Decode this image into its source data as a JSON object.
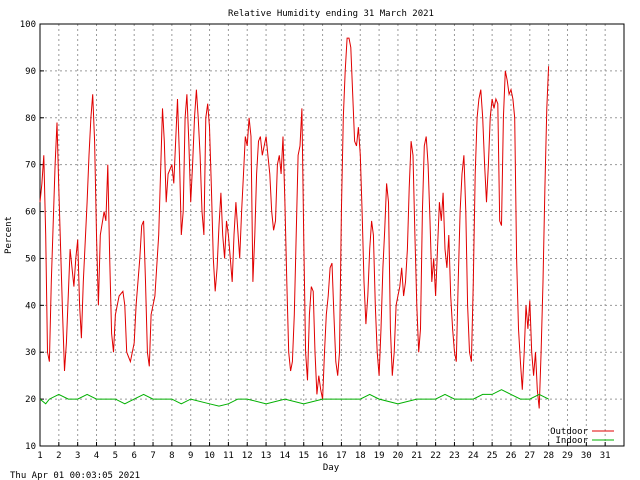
{
  "chart_data": {
    "type": "line",
    "title": "Relative Humidity ending 31 March 2021",
    "xlabel": "Day",
    "ylabel": "Percent",
    "ylim": [
      10,
      100
    ],
    "xlim": [
      1,
      32
    ],
    "x_ticks": [
      "1",
      "2",
      "3",
      "4",
      "5",
      "6",
      "7",
      "8",
      "9",
      "10",
      "11",
      "12",
      "13",
      "14",
      "15",
      "16",
      "17",
      "18",
      "19",
      "20",
      "21",
      "22",
      "23",
      "24",
      "25",
      "26",
      "27",
      "28",
      "29",
      "30",
      "31"
    ],
    "y_ticks": [
      "10",
      "20",
      "30",
      "40",
      "50",
      "60",
      "70",
      "80",
      "90",
      "100"
    ],
    "grid": true,
    "legend_position": "bottom-right",
    "footer": "Thu Apr 01 00:03:05 2021",
    "colors": {
      "outdoor": "#e00000",
      "indoor": "#00b000"
    },
    "series": [
      {
        "name": "Outdoor",
        "color": "#e00000",
        "points": [
          [
            1.0,
            62
          ],
          [
            1.1,
            66
          ],
          [
            1.2,
            72
          ],
          [
            1.3,
            55
          ],
          [
            1.4,
            30
          ],
          [
            1.5,
            28
          ],
          [
            1.6,
            45
          ],
          [
            1.8,
            70
          ],
          [
            1.9,
            79
          ],
          [
            2.0,
            65
          ],
          [
            2.2,
            38
          ],
          [
            2.3,
            26
          ],
          [
            2.4,
            32
          ],
          [
            2.6,
            52
          ],
          [
            2.7,
            48
          ],
          [
            2.8,
            44
          ],
          [
            2.9,
            50
          ],
          [
            3.0,
            54
          ],
          [
            3.1,
            40
          ],
          [
            3.2,
            33
          ],
          [
            3.3,
            45
          ],
          [
            3.5,
            62
          ],
          [
            3.6,
            72
          ],
          [
            3.7,
            80
          ],
          [
            3.8,
            85
          ],
          [
            3.9,
            75
          ],
          [
            4.0,
            55
          ],
          [
            4.1,
            40
          ],
          [
            4.2,
            55
          ],
          [
            4.4,
            60
          ],
          [
            4.5,
            58
          ],
          [
            4.6,
            70
          ],
          [
            4.7,
            50
          ],
          [
            4.8,
            34
          ],
          [
            4.9,
            30
          ],
          [
            5.0,
            38
          ],
          [
            5.2,
            42
          ],
          [
            5.4,
            43
          ],
          [
            5.5,
            40
          ],
          [
            5.6,
            30
          ],
          [
            5.8,
            28
          ],
          [
            6.0,
            32
          ],
          [
            6.1,
            40
          ],
          [
            6.3,
            50
          ],
          [
            6.4,
            57
          ],
          [
            6.5,
            58
          ],
          [
            6.6,
            45
          ],
          [
            6.7,
            30
          ],
          [
            6.8,
            27
          ],
          [
            6.9,
            38
          ],
          [
            7.1,
            42
          ],
          [
            7.3,
            55
          ],
          [
            7.5,
            82
          ],
          [
            7.6,
            75
          ],
          [
            7.7,
            62
          ],
          [
            7.8,
            68
          ],
          [
            8.0,
            70
          ],
          [
            8.1,
            66
          ],
          [
            8.3,
            84
          ],
          [
            8.4,
            72
          ],
          [
            8.5,
            55
          ],
          [
            8.6,
            60
          ],
          [
            8.7,
            80
          ],
          [
            8.8,
            85
          ],
          [
            8.9,
            75
          ],
          [
            9.0,
            62
          ],
          [
            9.1,
            70
          ],
          [
            9.2,
            80
          ],
          [
            9.3,
            86
          ],
          [
            9.4,
            80
          ],
          [
            9.5,
            72
          ],
          [
            9.6,
            60
          ],
          [
            9.7,
            55
          ],
          [
            9.8,
            80
          ],
          [
            9.9,
            83
          ],
          [
            10.0,
            78
          ],
          [
            10.1,
            65
          ],
          [
            10.2,
            50
          ],
          [
            10.3,
            43
          ],
          [
            10.4,
            48
          ],
          [
            10.5,
            57
          ],
          [
            10.6,
            64
          ],
          [
            10.7,
            55
          ],
          [
            10.8,
            50
          ],
          [
            10.9,
            58
          ],
          [
            11.0,
            55
          ],
          [
            11.2,
            45
          ],
          [
            11.3,
            55
          ],
          [
            11.4,
            62
          ],
          [
            11.5,
            56
          ],
          [
            11.6,
            50
          ],
          [
            11.7,
            60
          ],
          [
            11.8,
            68
          ],
          [
            11.9,
            76
          ],
          [
            12.0,
            74
          ],
          [
            12.1,
            80
          ],
          [
            12.2,
            76
          ],
          [
            12.3,
            45
          ],
          [
            12.4,
            55
          ],
          [
            12.5,
            68
          ],
          [
            12.6,
            75
          ],
          [
            12.7,
            76
          ],
          [
            12.8,
            72
          ],
          [
            12.9,
            74
          ],
          [
            13.0,
            76
          ],
          [
            13.1,
            72
          ],
          [
            13.2,
            68
          ],
          [
            13.3,
            60
          ],
          [
            13.4,
            56
          ],
          [
            13.5,
            58
          ],
          [
            13.6,
            70
          ],
          [
            13.7,
            72
          ],
          [
            13.8,
            68
          ],
          [
            13.9,
            76
          ],
          [
            14.0,
            62
          ],
          [
            14.1,
            45
          ],
          [
            14.2,
            30
          ],
          [
            14.3,
            26
          ],
          [
            14.4,
            28
          ],
          [
            14.5,
            38
          ],
          [
            14.6,
            55
          ],
          [
            14.7,
            72
          ],
          [
            14.8,
            74
          ],
          [
            14.9,
            82
          ],
          [
            15.0,
            55
          ],
          [
            15.1,
            30
          ],
          [
            15.2,
            24
          ],
          [
            15.3,
            38
          ],
          [
            15.4,
            44
          ],
          [
            15.5,
            43
          ],
          [
            15.6,
            30
          ],
          [
            15.7,
            21
          ],
          [
            15.8,
            25
          ],
          [
            15.9,
            22
          ],
          [
            16.0,
            20
          ],
          [
            16.1,
            30
          ],
          [
            16.2,
            38
          ],
          [
            16.3,
            42
          ],
          [
            16.4,
            48
          ],
          [
            16.5,
            49
          ],
          [
            16.6,
            38
          ],
          [
            16.7,
            28
          ],
          [
            16.8,
            25
          ],
          [
            16.9,
            30
          ],
          [
            17.0,
            60
          ],
          [
            17.1,
            80
          ],
          [
            17.2,
            90
          ],
          [
            17.3,
            97
          ],
          [
            17.4,
            97
          ],
          [
            17.5,
            95
          ],
          [
            17.6,
            85
          ],
          [
            17.7,
            75
          ],
          [
            17.8,
            74
          ],
          [
            17.9,
            78
          ],
          [
            18.0,
            72
          ],
          [
            18.1,
            60
          ],
          [
            18.2,
            45
          ],
          [
            18.3,
            36
          ],
          [
            18.4,
            42
          ],
          [
            18.5,
            52
          ],
          [
            18.6,
            58
          ],
          [
            18.7,
            55
          ],
          [
            18.8,
            40
          ],
          [
            18.9,
            30
          ],
          [
            19.0,
            25
          ],
          [
            19.1,
            35
          ],
          [
            19.2,
            48
          ],
          [
            19.3,
            56
          ],
          [
            19.4,
            66
          ],
          [
            19.5,
            62
          ],
          [
            19.6,
            35
          ],
          [
            19.7,
            25
          ],
          [
            19.8,
            30
          ],
          [
            19.9,
            40
          ],
          [
            20.0,
            42
          ],
          [
            20.1,
            44
          ],
          [
            20.2,
            48
          ],
          [
            20.3,
            42
          ],
          [
            20.4,
            45
          ],
          [
            20.5,
            52
          ],
          [
            20.6,
            65
          ],
          [
            20.7,
            75
          ],
          [
            20.8,
            72
          ],
          [
            20.9,
            55
          ],
          [
            21.0,
            40
          ],
          [
            21.1,
            30
          ],
          [
            21.2,
            35
          ],
          [
            21.3,
            60
          ],
          [
            21.4,
            74
          ],
          [
            21.5,
            76
          ],
          [
            21.6,
            70
          ],
          [
            21.7,
            58
          ],
          [
            21.8,
            45
          ],
          [
            21.9,
            50
          ],
          [
            22.0,
            42
          ],
          [
            22.1,
            52
          ],
          [
            22.2,
            62
          ],
          [
            22.3,
            58
          ],
          [
            22.4,
            64
          ],
          [
            22.5,
            52
          ],
          [
            22.6,
            48
          ],
          [
            22.7,
            55
          ],
          [
            22.8,
            42
          ],
          [
            22.9,
            35
          ],
          [
            23.0,
            30
          ],
          [
            23.1,
            28
          ],
          [
            23.2,
            45
          ],
          [
            23.3,
            60
          ],
          [
            23.4,
            68
          ],
          [
            23.5,
            72
          ],
          [
            23.6,
            60
          ],
          [
            23.7,
            40
          ],
          [
            23.8,
            30
          ],
          [
            23.9,
            28
          ],
          [
            24.0,
            45
          ],
          [
            24.1,
            68
          ],
          [
            24.2,
            80
          ],
          [
            24.3,
            84
          ],
          [
            24.4,
            86
          ],
          [
            24.5,
            80
          ],
          [
            24.6,
            70
          ],
          [
            24.7,
            62
          ],
          [
            24.8,
            70
          ],
          [
            24.9,
            80
          ],
          [
            25.0,
            84
          ],
          [
            25.1,
            82
          ],
          [
            25.2,
            84
          ],
          [
            25.3,
            83
          ],
          [
            25.4,
            58
          ],
          [
            25.5,
            57
          ],
          [
            25.6,
            80
          ],
          [
            25.7,
            90
          ],
          [
            25.8,
            88
          ],
          [
            25.9,
            85
          ],
          [
            26.0,
            86
          ],
          [
            26.1,
            84
          ],
          [
            26.2,
            80
          ],
          [
            26.3,
            50
          ],
          [
            26.4,
            35
          ],
          [
            26.5,
            28
          ],
          [
            26.6,
            22
          ],
          [
            26.7,
            30
          ],
          [
            26.8,
            40
          ],
          [
            26.9,
            35
          ],
          [
            27.0,
            41
          ],
          [
            27.1,
            30
          ],
          [
            27.2,
            25
          ],
          [
            27.3,
            30
          ],
          [
            27.4,
            22
          ],
          [
            27.5,
            18
          ],
          [
            27.6,
            30
          ],
          [
            27.7,
            45
          ],
          [
            27.8,
            65
          ],
          [
            27.9,
            82
          ],
          [
            28.0,
            91
          ]
        ]
      },
      {
        "name": "Indoor",
        "color": "#00b000",
        "points": [
          [
            1.0,
            20
          ],
          [
            1.3,
            19
          ],
          [
            1.5,
            20
          ],
          [
            2.0,
            21
          ],
          [
            2.5,
            20
          ],
          [
            3.0,
            20
          ],
          [
            3.5,
            21
          ],
          [
            4.0,
            20
          ],
          [
            5.0,
            20
          ],
          [
            5.5,
            19
          ],
          [
            6.0,
            20
          ],
          [
            6.5,
            21
          ],
          [
            7.0,
            20
          ],
          [
            8.0,
            20
          ],
          [
            8.5,
            19
          ],
          [
            9.0,
            20
          ],
          [
            10.0,
            19
          ],
          [
            10.5,
            18.5
          ],
          [
            11.0,
            19
          ],
          [
            11.5,
            20
          ],
          [
            12.0,
            20
          ],
          [
            13.0,
            19
          ],
          [
            14.0,
            20
          ],
          [
            15.0,
            19
          ],
          [
            16.0,
            20
          ],
          [
            17.0,
            20
          ],
          [
            18.0,
            20
          ],
          [
            18.5,
            21
          ],
          [
            19.0,
            20
          ],
          [
            20.0,
            19
          ],
          [
            21.0,
            20
          ],
          [
            22.0,
            20
          ],
          [
            22.5,
            21
          ],
          [
            23.0,
            20
          ],
          [
            24.0,
            20
          ],
          [
            24.5,
            21
          ],
          [
            25.0,
            21
          ],
          [
            25.5,
            22
          ],
          [
            26.0,
            21
          ],
          [
            26.5,
            20
          ],
          [
            27.0,
            20
          ],
          [
            27.5,
            21
          ],
          [
            28.0,
            20
          ]
        ]
      }
    ]
  }
}
